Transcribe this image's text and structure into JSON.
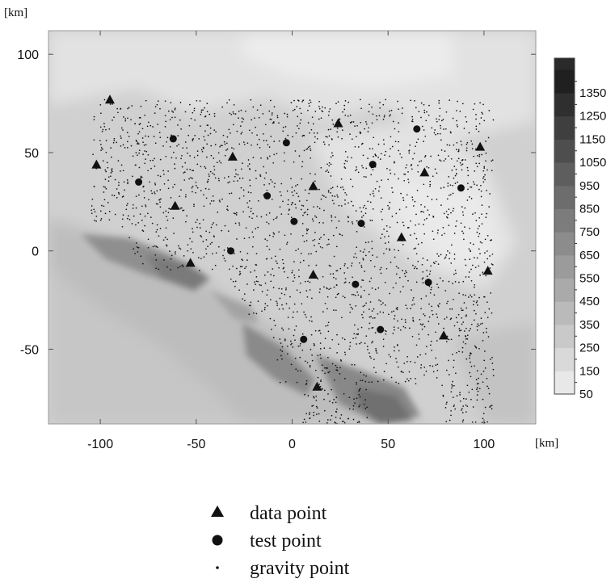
{
  "chart_data": {
    "type": "scatter",
    "background": "contour map (grayscale)",
    "x_unit": "[km]",
    "y_unit": "[km]",
    "xlim": [
      -127,
      127
    ],
    "ylim": [
      -88,
      112
    ],
    "x_ticks": [
      -100,
      -50,
      0,
      50,
      100
    ],
    "y_ticks": [
      -50,
      0,
      50,
      100
    ],
    "x_tick_labels": [
      "-100",
      "-50",
      "0",
      "50",
      "100"
    ],
    "y_tick_labels": [
      "-50",
      "0",
      "50",
      "100"
    ],
    "colorbar": {
      "levels": [
        50,
        150,
        250,
        350,
        450,
        550,
        650,
        750,
        850,
        950,
        1050,
        1150,
        1250,
        1350
      ],
      "labels": [
        "50",
        "150",
        "250",
        "350",
        "450",
        "550",
        "650",
        "750",
        "850",
        "950",
        "1050",
        "1150",
        "1250",
        "1350"
      ],
      "min": 0,
      "max": 1450
    },
    "series": [
      {
        "name": "data point",
        "marker": "triangle",
        "points": [
          [
            -95,
            77
          ],
          [
            -102,
            44
          ],
          [
            -61,
            23
          ],
          [
            -31,
            48
          ],
          [
            -53,
            -6
          ],
          [
            11,
            33
          ],
          [
            24,
            65
          ],
          [
            69,
            40
          ],
          [
            98,
            53
          ],
          [
            57,
            7
          ],
          [
            11,
            -12
          ],
          [
            102,
            -10
          ],
          [
            79,
            -43
          ],
          [
            13,
            -69
          ]
        ]
      },
      {
        "name": "test point",
        "marker": "circle",
        "points": [
          [
            -62,
            57
          ],
          [
            -80,
            35
          ],
          [
            -13,
            28
          ],
          [
            -3,
            55
          ],
          [
            42,
            44
          ],
          [
            65,
            62
          ],
          [
            88,
            32
          ],
          [
            1,
            15
          ],
          [
            36,
            14
          ],
          [
            -32,
            0
          ],
          [
            33,
            -17
          ],
          [
            71,
            -16
          ],
          [
            6,
            -45
          ],
          [
            46,
            -40
          ]
        ]
      },
      {
        "name": "gravity point",
        "marker": "dot"
      }
    ]
  },
  "legend": {
    "items": [
      {
        "label": "data point",
        "symbol": "triangle"
      },
      {
        "label": "test point",
        "symbol": "circle"
      },
      {
        "label": "gravity point",
        "symbol": "dot"
      }
    ]
  }
}
